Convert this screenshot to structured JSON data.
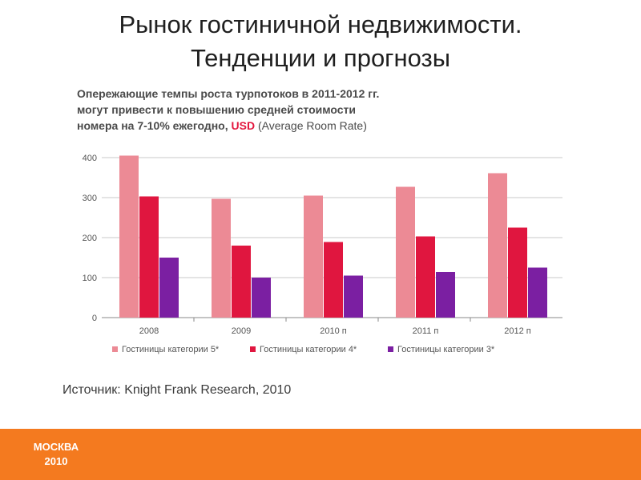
{
  "slide": {
    "title_line1": "Рынок гостиничной недвижимости.",
    "title_line2": "Тенденции и прогнозы"
  },
  "chart_heading": {
    "line1": "Опережающие темпы роста турпотоков в 2011-2012 гг.",
    "line2": "могут привести к повышению средней стоимости",
    "line3_prefix": "номера на 7-10% ежегодно, ",
    "line3_accent": "USD",
    "line3_suffix": " (Average Room Rate)"
  },
  "source": "Источник: Knight Frank Research, 2010",
  "footer": {
    "city": "МОСКВА",
    "year": "2010",
    "bar_color": "#f47a1f"
  },
  "chart_data": {
    "type": "bar",
    "categories": [
      "2008",
      "2009",
      "2010 п",
      "2011 п",
      "2012 п"
    ],
    "series": [
      {
        "name": "Гостиницы категории 5*",
        "color": "#ec8a95",
        "values": [
          405,
          297,
          305,
          327,
          361
        ]
      },
      {
        "name": "Гостиницы категории 4*",
        "color": "#e0163f",
        "values": [
          303,
          180,
          189,
          203,
          225
        ]
      },
      {
        "name": "Гостиницы категории 3*",
        "color": "#7b1fa2",
        "values": [
          150,
          100,
          105,
          114,
          125
        ]
      }
    ],
    "ylim": [
      0,
      400
    ],
    "yticks": [
      0,
      100,
      200,
      300,
      400
    ],
    "grid": true,
    "legend_position": "bottom"
  }
}
